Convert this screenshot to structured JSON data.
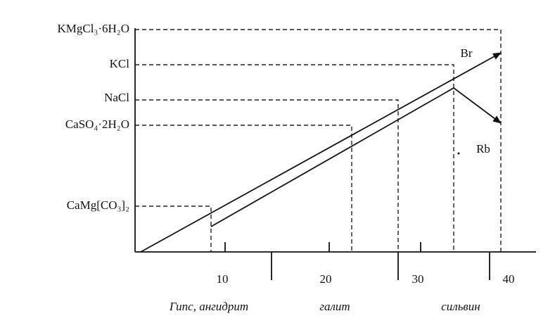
{
  "levels": [
    "KMgCl₃·6H₂O",
    "KCl",
    "NaCl",
    "CaSO₄·2H₂O",
    "CaMg[CO₃]₂"
  ],
  "x_ticks": [
    "10",
    "20",
    "30",
    "40"
  ],
  "zones": [
    "Гипс, ангидрит",
    "галит",
    "сильвин"
  ],
  "lines": [
    "Br",
    "Rb"
  ]
}
